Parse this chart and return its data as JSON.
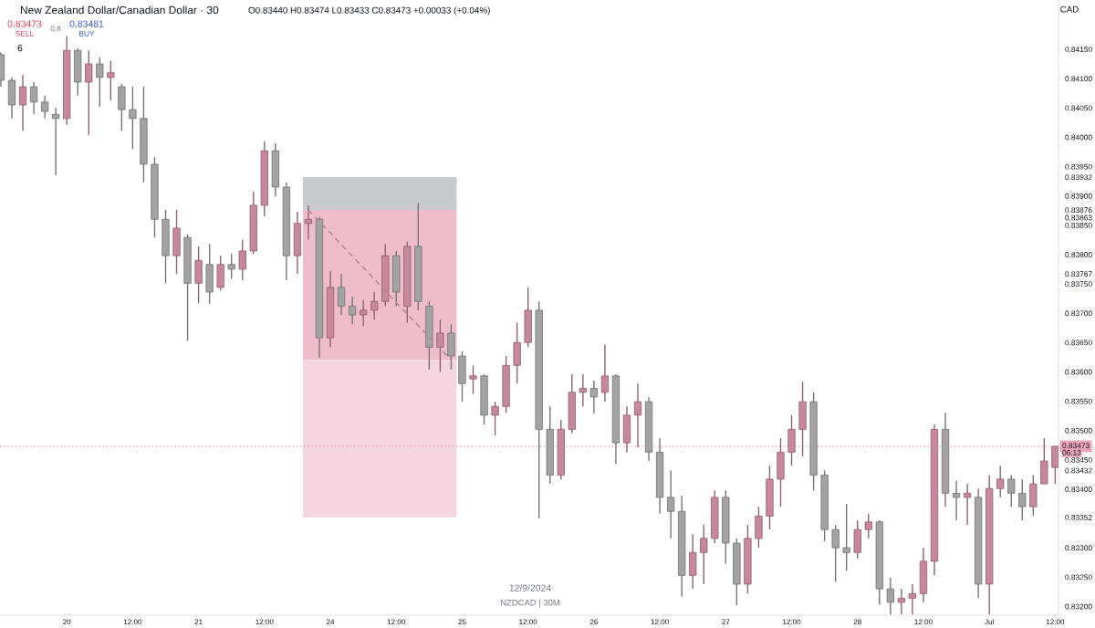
{
  "chart_data": {
    "type": "candlestick",
    "title": "New Zealand Dollar/Canadian Dollar · 30",
    "categories": [
      null,
      null,
      null,
      null,
      null,
      null,
      "20",
      null,
      null,
      null,
      null,
      null,
      "12:00",
      null,
      null,
      null,
      null,
      null,
      "21",
      null,
      null,
      null,
      null,
      null,
      "12:00",
      null,
      null,
      null,
      null,
      null,
      "24",
      null,
      null,
      null,
      null,
      null,
      "12:00",
      null,
      null,
      null,
      null,
      null,
      "25",
      null,
      null,
      null,
      null,
      null,
      "12:00",
      null,
      null,
      null,
      null,
      null,
      "26",
      null,
      null,
      null,
      null,
      null,
      "12:00",
      null,
      null,
      null,
      null,
      null,
      "27",
      null,
      null,
      null,
      null,
      null,
      "12:00",
      null,
      null,
      null,
      null,
      null,
      "28",
      null,
      null,
      null,
      null,
      null,
      "12:00",
      null,
      null,
      null,
      null,
      null,
      "Jul",
      null,
      null,
      null,
      null,
      null,
      "12:00"
    ],
    "ohlc": [
      [
        0.84141,
        0.84145,
        0.84086,
        0.84097
      ],
      [
        0.84097,
        0.84102,
        0.84032,
        0.84055
      ],
      [
        0.84055,
        0.84106,
        0.84011,
        0.84086
      ],
      [
        0.84086,
        0.84094,
        0.84039,
        0.8406
      ],
      [
        0.8406,
        0.84071,
        0.84032,
        0.84044
      ],
      [
        0.84039,
        0.8405,
        0.83935,
        0.84032
      ],
      [
        0.84032,
        0.84172,
        0.84021,
        0.84148
      ],
      [
        0.84148,
        0.84152,
        0.84071,
        0.84094
      ],
      [
        0.84094,
        0.84148,
        0.84004,
        0.84125
      ],
      [
        0.84125,
        0.84136,
        0.84052,
        0.84102
      ],
      [
        0.84102,
        0.8413,
        0.84063,
        0.8411
      ],
      [
        0.84086,
        0.84091,
        0.84011,
        0.84047
      ],
      [
        0.84047,
        0.84086,
        0.8398,
        0.84032
      ],
      [
        0.84032,
        0.84086,
        0.83923,
        0.83954
      ],
      [
        0.83954,
        0.83966,
        0.83829,
        0.8386
      ],
      [
        0.8386,
        0.83876,
        0.83751,
        0.83798
      ],
      [
        0.83798,
        0.83876,
        0.83767,
        0.83845
      ],
      [
        0.83829,
        0.83834,
        0.83653,
        0.83751
      ],
      [
        0.83751,
        0.83814,
        0.83717,
        0.8379
      ],
      [
        0.83783,
        0.83818,
        0.83716,
        0.83736
      ],
      [
        0.83744,
        0.83798,
        0.83739,
        0.83783
      ],
      [
        0.83783,
        0.83801,
        0.83759,
        0.83775
      ],
      [
        0.83775,
        0.83825,
        0.83756,
        0.83806
      ],
      [
        0.83806,
        0.83907,
        0.83801,
        0.83884
      ],
      [
        0.83884,
        0.83993,
        0.83865,
        0.83977
      ],
      [
        0.83977,
        0.8399,
        0.83899,
        0.83915
      ],
      [
        0.83915,
        0.83923,
        0.83756,
        0.83798
      ],
      [
        0.83798,
        0.83873,
        0.83767,
        0.83853
      ],
      [
        0.83853,
        0.83884,
        0.83826,
        0.8386
      ],
      [
        0.8386,
        0.83864,
        0.83624,
        0.83658
      ],
      [
        0.83658,
        0.83772,
        0.83642,
        0.83744
      ],
      [
        0.83744,
        0.83767,
        0.83697,
        0.83712
      ],
      [
        0.83712,
        0.83728,
        0.83681,
        0.83697
      ],
      [
        0.83697,
        0.83723,
        0.83678,
        0.83705
      ],
      [
        0.83705,
        0.83736,
        0.83689,
        0.8372
      ],
      [
        0.8372,
        0.83818,
        0.83712,
        0.83798
      ],
      [
        0.83798,
        0.83806,
        0.83712,
        0.83736
      ],
      [
        0.83712,
        0.83822,
        0.83684,
        0.83814
      ],
      [
        0.83814,
        0.83888,
        0.83705,
        0.8372
      ],
      [
        0.83712,
        0.8372,
        0.83604,
        0.83642
      ],
      [
        0.83642,
        0.83689,
        0.836,
        0.83666
      ],
      [
        0.83666,
        0.83681,
        0.83604,
        0.83627
      ],
      [
        0.83627,
        0.83635,
        0.83549,
        0.8358
      ],
      [
        0.83588,
        0.83611,
        0.83562,
        0.83593
      ],
      [
        0.83593,
        0.83596,
        0.8351,
        0.83526
      ],
      [
        0.83526,
        0.83549,
        0.83491,
        0.83541
      ],
      [
        0.83541,
        0.83627,
        0.8353,
        0.83611
      ],
      [
        0.83611,
        0.83684,
        0.8358,
        0.8365
      ],
      [
        0.8365,
        0.83744,
        0.83642,
        0.83705
      ],
      [
        0.83705,
        0.8372,
        0.8335,
        0.83502
      ],
      [
        0.83502,
        0.83541,
        0.83409,
        0.83424
      ],
      [
        0.83424,
        0.83518,
        0.83417,
        0.83502
      ],
      [
        0.83502,
        0.83596,
        0.83495,
        0.83565
      ],
      [
        0.83565,
        0.83596,
        0.83541,
        0.83572
      ],
      [
        0.83572,
        0.83585,
        0.83529,
        0.83557
      ],
      [
        0.83565,
        0.83646,
        0.83549,
        0.83593
      ],
      [
        0.83593,
        0.83596,
        0.83443,
        0.83479
      ],
      [
        0.83479,
        0.83541,
        0.83463,
        0.83526
      ],
      [
        0.83526,
        0.8358,
        0.83471,
        0.83549
      ],
      [
        0.83549,
        0.83557,
        0.83448,
        0.83463
      ],
      [
        0.83463,
        0.83487,
        0.83358,
        0.83386
      ],
      [
        0.83386,
        0.83432,
        0.83316,
        0.83362
      ],
      [
        0.83362,
        0.83389,
        0.83217,
        0.83253
      ],
      [
        0.83253,
        0.83323,
        0.8323,
        0.83292
      ],
      [
        0.83292,
        0.83339,
        0.83238,
        0.83316
      ],
      [
        0.83316,
        0.83398,
        0.83308,
        0.83386
      ],
      [
        0.83386,
        0.83398,
        0.83273,
        0.83308
      ],
      [
        0.83308,
        0.83316,
        0.83202,
        0.83238
      ],
      [
        0.83238,
        0.83339,
        0.83222,
        0.83316
      ],
      [
        0.83316,
        0.8337,
        0.833,
        0.83354
      ],
      [
        0.83354,
        0.8344,
        0.83331,
        0.83417
      ],
      [
        0.83417,
        0.83487,
        0.8337,
        0.83463
      ],
      [
        0.83463,
        0.83526,
        0.8344,
        0.83502
      ],
      [
        0.83502,
        0.83583,
        0.83456,
        0.83549
      ],
      [
        0.83549,
        0.83565,
        0.83398,
        0.83424
      ],
      [
        0.83424,
        0.83432,
        0.83311,
        0.83331
      ],
      [
        0.83331,
        0.83339,
        0.83242,
        0.833
      ],
      [
        0.833,
        0.83375,
        0.83261,
        0.83292
      ],
      [
        0.83292,
        0.83347,
        0.83281,
        0.83331
      ],
      [
        0.83331,
        0.83358,
        0.83316,
        0.83344
      ],
      [
        0.83344,
        0.83347,
        0.83203,
        0.8323
      ],
      [
        0.8323,
        0.83249,
        0.83186,
        0.83207
      ],
      [
        0.83207,
        0.8323,
        0.83186,
        0.83214
      ],
      [
        0.83214,
        0.83238,
        0.83186,
        0.83222
      ],
      [
        0.83222,
        0.833,
        0.83207,
        0.83277
      ],
      [
        0.83277,
        0.8351,
        0.83253,
        0.83502
      ],
      [
        0.83502,
        0.8353,
        0.8337,
        0.83393
      ],
      [
        0.83393,
        0.83414,
        0.83347,
        0.83386
      ],
      [
        0.83386,
        0.83409,
        0.83339,
        0.83393
      ],
      [
        0.83386,
        0.83401,
        0.83214,
        0.83238
      ],
      [
        0.83238,
        0.83424,
        0.83186,
        0.83401
      ],
      [
        0.83401,
        0.8344,
        0.83386,
        0.83417
      ],
      [
        0.83417,
        0.83424,
        0.8337,
        0.83393
      ],
      [
        0.83393,
        0.83417,
        0.83347,
        0.8337
      ],
      [
        0.8337,
        0.83424,
        0.83354,
        0.83409
      ],
      [
        0.83409,
        0.83487,
        0.83409,
        0.83448
      ],
      [
        0.83437,
        0.83473,
        0.83409,
        0.83473
      ]
    ],
    "colors": [
      "#a3a3a3",
      "#a3a3a3",
      "#c7889c",
      "#a3a3a3",
      "#a3a3a3",
      "#a3a3a3",
      "#c7889c",
      "#a3a3a3",
      "#c7889c",
      "#a3a3a3",
      "#c7889c",
      "#a3a3a3",
      "#a3a3a3",
      "#a3a3a3",
      "#a3a3a3",
      "#a3a3a3",
      "#c7889c",
      "#a3a3a3",
      "#c7889c",
      "#a3a3a3",
      "#c7889c",
      "#a3a3a3",
      "#c7889c",
      "#c7889c",
      "#c7889c",
      "#a3a3a3",
      "#a3a3a3",
      "#c7889c",
      "#c7889c",
      "#a3a3a3",
      "#c7889c",
      "#a3a3a3",
      "#a3a3a3",
      "#c7889c",
      "#c7889c",
      "#c7889c",
      "#a3a3a3",
      "#c7889c",
      "#a3a3a3",
      "#a3a3a3",
      "#c7889c",
      "#a3a3a3",
      "#a3a3a3",
      "#c7889c",
      "#a3a3a3",
      "#c7889c",
      "#c7889c",
      "#c7889c",
      "#c7889c",
      "#a3a3a3",
      "#a3a3a3",
      "#c7889c",
      "#c7889c",
      "#c7889c",
      "#a3a3a3",
      "#c7889c",
      "#a3a3a3",
      "#c7889c",
      "#c7889c",
      "#a3a3a3",
      "#a3a3a3",
      "#a3a3a3",
      "#a3a3a3",
      "#c7889c",
      "#c7889c",
      "#c7889c",
      "#a3a3a3",
      "#a3a3a3",
      "#c7889c",
      "#c7889c",
      "#c7889c",
      "#c7889c",
      "#c7889c",
      "#c7889c",
      "#a3a3a3",
      "#a3a3a3",
      "#a3a3a3",
      "#a3a3a3",
      "#c7889c",
      "#c7889c",
      "#a3a3a3",
      "#a3a3a3",
      "#c7889c",
      "#c7889c",
      "#c7889c",
      "#c7889c",
      "#a3a3a3",
      "#a3a3a3",
      "#c7889c",
      "#a3a3a3",
      "#c7889c",
      "#c7889c",
      "#a3a3a3",
      "#a3a3a3",
      "#c7889c",
      "#c7889c",
      "#c7889c"
    ],
    "series": [
      {
        "type": "line",
        "color": "#b08a96",
        "line_style": "dashed",
        "values": [
          null,
          null,
          null,
          null,
          null,
          null,
          null,
          null,
          null,
          null,
          null,
          null,
          null,
          null,
          null,
          null,
          null,
          null,
          null,
          null,
          null,
          null,
          null,
          null,
          null,
          null,
          null,
          null,
          0.83876,
          0.83856,
          0.83837,
          0.83817,
          0.83797,
          0.83778,
          0.83758,
          0.83738,
          0.83718,
          0.83699,
          0.83679,
          0.83659,
          0.8364,
          0.8362,
          null,
          null,
          null,
          null,
          null,
          null,
          null,
          null,
          null,
          null,
          null,
          null,
          null,
          null,
          null,
          null,
          null,
          null,
          null,
          null,
          null,
          null,
          null,
          null,
          null,
          null,
          null,
          null,
          null,
          null,
          null,
          null,
          null,
          null,
          null,
          null,
          null,
          null,
          null,
          null,
          null,
          null,
          null,
          null,
          null,
          null,
          null,
          null,
          null,
          null,
          null,
          null,
          null,
          null,
          null
        ]
      }
    ],
    "bands": [
      {
        "axis": "y",
        "from": 0.83876,
        "to": 0.83932,
        "color": "#c9cacd"
      },
      {
        "axis": "y",
        "from": 0.8362,
        "to": 0.83876,
        "color": "#efbccc"
      },
      {
        "axis": "y",
        "from": 0.83352,
        "to": 0.8362,
        "color": "#f5d6e0"
      }
    ],
    "ref_lines": [
      {
        "axis": "y",
        "value": 0.83473,
        "label": "0.83473",
        "color": "#eca4b9",
        "line_style": "dotted"
      }
    ],
    "annotations": [
      "O0.83440 H0.83474 L0.83433 C0.83473 +0.00033 (+0.04%)",
      "0.83473",
      "SELL",
      "0.8",
      "0.83481",
      "BUY",
      "6",
      "CAD",
      "12/9/2024",
      "NZDCAD | 30M",
      "06:13"
    ],
    "ylim": [
      0.83185,
      0.84234
    ],
    "yticks": [
      {
        "value": 0.8415,
        "label": "0.84150"
      },
      {
        "value": 0.841,
        "label": "0.84100"
      },
      {
        "value": 0.8405,
        "label": "0.84050"
      },
      {
        "value": 0.84,
        "label": "0.84000"
      },
      {
        "value": 0.8395,
        "label": "0.83950"
      },
      0.83932,
      {
        "value": 0.839,
        "label": "0.83900"
      },
      0.83876,
      0.83863,
      {
        "value": 0.8385,
        "label": "0.83850"
      },
      {
        "value": 0.838,
        "label": "0.83800"
      },
      0.83767,
      {
        "value": 0.8375,
        "label": "0.83750"
      },
      {
        "value": 0.837,
        "label": "0.83700"
      },
      {
        "value": 0.8365,
        "label": "0.83650"
      },
      {
        "value": 0.836,
        "label": "0.83600"
      },
      {
        "value": 0.8355,
        "label": "0.83550"
      },
      {
        "value": 0.835,
        "label": "0.83500"
      },
      {
        "value": 0.8345,
        "label": "0.83450"
      },
      0.83432,
      {
        "value": 0.834,
        "label": "0.83400"
      },
      0.83352,
      {
        "value": 0.833,
        "label": "0.83300"
      },
      {
        "value": 0.8325,
        "label": "0.83250"
      },
      {
        "value": 0.832,
        "label": "0.83200"
      }
    ]
  }
}
